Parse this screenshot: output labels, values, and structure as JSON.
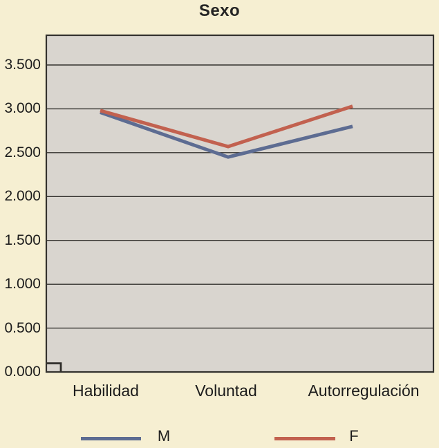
{
  "chart": {
    "title": "Sexo"
  },
  "chart_data": {
    "type": "line",
    "title": "Sexo",
    "categories": [
      "Habilidad",
      "Voluntad",
      "Autorregulación"
    ],
    "series": [
      {
        "name": "M",
        "color": "#5d6c92",
        "values": [
          2.96,
          2.45,
          2.8
        ]
      },
      {
        "name": "F",
        "color": "#c2614f",
        "values": [
          2.98,
          2.57,
          3.03
        ]
      }
    ],
    "xlabel": "",
    "ylabel": "",
    "ylim": [
      0,
      3.5
    ],
    "ytick_labels": [
      "0.000",
      "0.500",
      "1.000",
      "1.500",
      "2.000",
      "2.500",
      "3.000",
      "3.500"
    ],
    "grid": true,
    "legend_position": "bottom"
  },
  "colors": {
    "background": "#f6efd2",
    "plot_background": "#d9d5cf",
    "grid_line": "#33312e",
    "text": "#1c1c1c"
  }
}
